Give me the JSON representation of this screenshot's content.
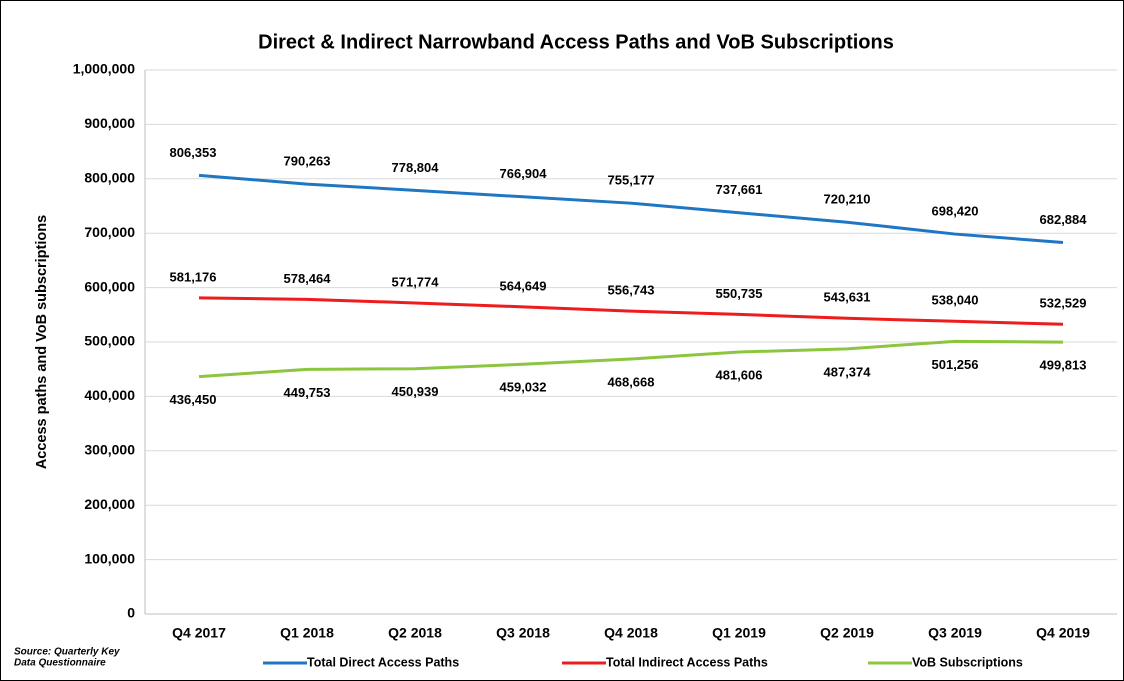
{
  "chart_data": {
    "type": "line",
    "title": "Direct & Indirect Narrowband Access Paths and VoB Subscriptions",
    "ylabel": "Access paths and VoB subscriptions",
    "source": [
      "Source:  Quarterly Key",
      "Data Questionnaire"
    ],
    "categories": [
      "Q4 2017",
      "Q1 2018",
      "Q2 2018",
      "Q3 2018",
      "Q4 2018",
      "Q1 2019",
      "Q2 2019",
      "Q3 2019",
      "Q4 2019"
    ],
    "series": [
      {
        "name": "Total Direct Access Paths",
        "color": "#1f77c4",
        "values": [
          806353,
          790263,
          778804,
          766904,
          755177,
          737661,
          720210,
          698420,
          682884
        ],
        "value_labels": [
          "806,353",
          "790,263",
          "778,804",
          "766,904",
          "755,177",
          "737,661",
          "720,210",
          "698,420",
          "682,884"
        ]
      },
      {
        "name": "Total Indirect Access Paths",
        "color": "#ee1c1c",
        "values": [
          581176,
          578464,
          571774,
          564649,
          556743,
          550735,
          543631,
          538040,
          532529
        ],
        "value_labels": [
          "581,176",
          "578,464",
          "571,774",
          "564,649",
          "556,743",
          "550,735",
          "543,631",
          "538,040",
          "532,529"
        ]
      },
      {
        "name": "VoB Subscriptions",
        "color": "#8cc63f",
        "values": [
          436450,
          449753,
          450939,
          459032,
          468668,
          481606,
          487374,
          501256,
          499813
        ],
        "value_labels": [
          "436,450",
          "449,753",
          "450,939",
          "459,032",
          "468,668",
          "481,606",
          "487,374",
          "501,256",
          "499,813"
        ]
      }
    ],
    "ylim": [
      0,
      1000000
    ],
    "yticks": [
      0,
      {
        "value": 100000,
        "label": "100,000"
      },
      {
        "value": 200000,
        "label": "200,000"
      },
      {
        "value": 300000,
        "label": "300,000"
      },
      {
        "value": 400000,
        "label": "400,000"
      },
      {
        "value": 500000,
        "label": "500,000"
      },
      {
        "value": 600000,
        "label": "600,000"
      },
      {
        "value": 700000,
        "label": "700,000"
      },
      {
        "value": 800000,
        "label": "800,000"
      },
      {
        "value": 900000,
        "label": "900,000"
      },
      {
        "value": 1000000,
        "label": "1,000,000"
      }
    ],
    "grid": true,
    "legend": "bottom"
  }
}
